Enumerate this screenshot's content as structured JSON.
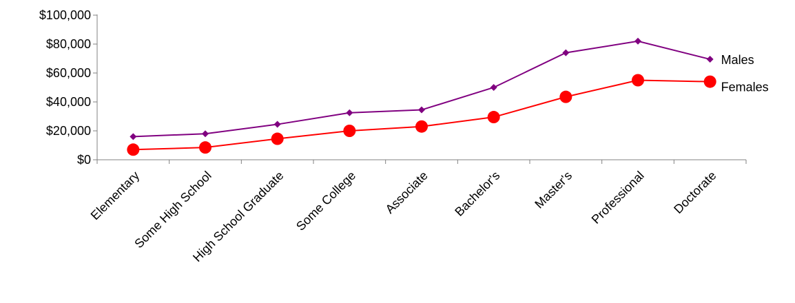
{
  "chart_data": {
    "type": "line",
    "title": "",
    "xlabel": "",
    "ylabel": "",
    "categories": [
      "Elementary",
      "Some High School",
      "High School Graduate",
      "Some College",
      "Associate",
      "Bachelor's",
      "Master's",
      "Professional",
      "Doctorate"
    ],
    "ylim": [
      0,
      100000
    ],
    "yticks": [
      0,
      20000,
      40000,
      60000,
      80000,
      100000
    ],
    "ytick_labels": [
      "$0",
      "$20,000",
      "$40,000",
      "$60,000",
      "$80,000",
      "$100,000"
    ],
    "grid": false,
    "legend": "end-of-line labels",
    "series": [
      {
        "name": "Males",
        "color": "#800080",
        "marker": "diamond",
        "values": [
          16000,
          18000,
          24500,
          32500,
          34500,
          50000,
          74000,
          82000,
          69500
        ]
      },
      {
        "name": "Females",
        "color": "#ff0000",
        "marker": "circle",
        "values": [
          7000,
          8500,
          14500,
          20000,
          23000,
          29500,
          43500,
          55000,
          54000
        ]
      }
    ]
  }
}
